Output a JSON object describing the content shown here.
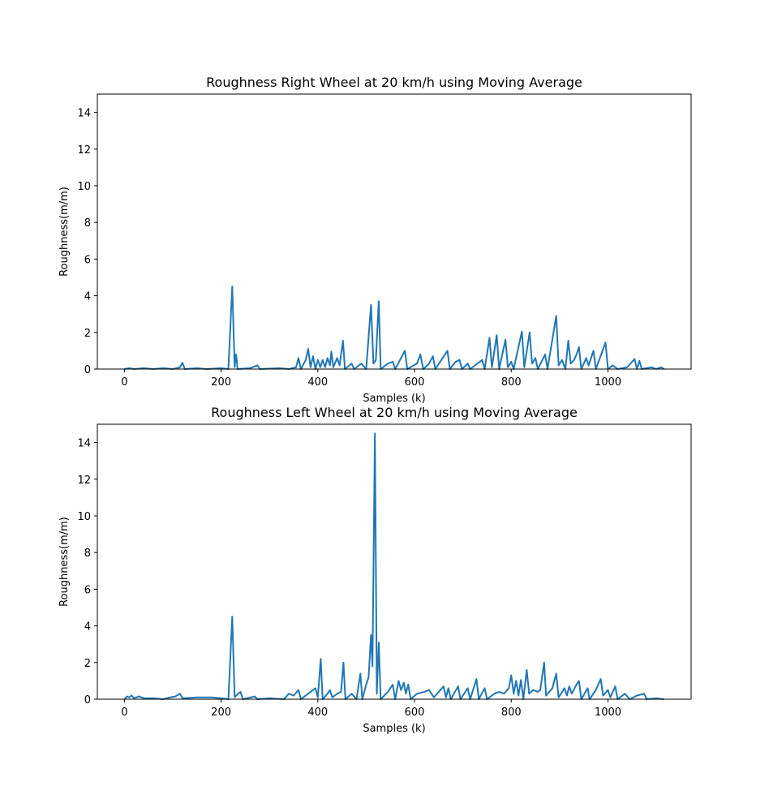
{
  "chart_data": [
    {
      "type": "line",
      "title": "Roughness Right Wheel at 20 km/h using Moving Average",
      "xlabel": "Samples (k)",
      "ylabel": "Roughness(m/m)",
      "color": "#1f77b4",
      "x": [
        0,
        10,
        20,
        40,
        60,
        80,
        100,
        115,
        120,
        125,
        150,
        170,
        200,
        215,
        223,
        228,
        231,
        234,
        260,
        275,
        280,
        320,
        340,
        355,
        360,
        365,
        375,
        380,
        385,
        390,
        395,
        400,
        405,
        410,
        415,
        420,
        425,
        428,
        432,
        440,
        445,
        452,
        456,
        470,
        475,
        490,
        500,
        510,
        515,
        520,
        526,
        530,
        545,
        555,
        560,
        580,
        585,
        605,
        612,
        618,
        630,
        638,
        643,
        668,
        673,
        685,
        693,
        698,
        710,
        715,
        740,
        745,
        755,
        760,
        770,
        775,
        788,
        793,
        800,
        805,
        822,
        827,
        838,
        843,
        850,
        855,
        870,
        875,
        893,
        898,
        905,
        912,
        918,
        923,
        930,
        935,
        940,
        945,
        955,
        960,
        970,
        975,
        995,
        1000,
        1010,
        1020,
        1040,
        1055,
        1060,
        1065,
        1070,
        1090,
        1100,
        1110,
        1116
      ],
      "values": [
        0,
        0.05,
        0,
        0.05,
        0,
        0.05,
        0,
        0.1,
        0.35,
        0,
        0.05,
        0,
        0.05,
        0,
        4.5,
        0.1,
        0.8,
        0,
        0.05,
        0.2,
        0,
        0.05,
        0,
        0.1,
        0.6,
        0,
        0.5,
        1.1,
        0.1,
        0.7,
        0,
        0.5,
        0.1,
        0.5,
        0.1,
        0.6,
        0.2,
        0.95,
        0.1,
        0.6,
        0.2,
        1.55,
        0,
        0.3,
        0,
        0.3,
        0,
        3.5,
        0.3,
        0.5,
        3.7,
        0,
        0.3,
        0.4,
        0,
        1.0,
        0,
        0.3,
        0.8,
        0,
        0.3,
        0.7,
        0,
        1.0,
        0,
        0.4,
        0.5,
        0,
        0.3,
        0,
        0.5,
        0,
        1.7,
        0.1,
        1.85,
        0,
        1.6,
        0.1,
        0.4,
        0,
        2.05,
        0.1,
        2.0,
        0.3,
        0.6,
        0,
        0.8,
        0,
        2.9,
        0.2,
        0.5,
        0,
        1.55,
        0.3,
        0.5,
        0.8,
        1.2,
        0,
        0.6,
        0.2,
        1.0,
        0,
        1.45,
        0,
        0.2,
        0,
        0.1,
        0.55,
        0,
        0.45,
        0,
        0.1,
        0,
        0.1,
        0
      ],
      "xlim": [
        -56,
        1172
      ],
      "ylim": [
        0,
        15
      ],
      "xticks": [
        0,
        200,
        400,
        600,
        800,
        1000
      ],
      "yticks": [
        0,
        2,
        4,
        6,
        8,
        10,
        12,
        14
      ]
    },
    {
      "type": "line",
      "title": "Roughness Left Wheel at 20 km/h using Moving Average",
      "xlabel": "Samples (k)",
      "ylabel": "Roughness(m/m)",
      "color": "#1f77b4",
      "x": [
        0,
        5,
        10,
        15,
        20,
        30,
        40,
        60,
        80,
        95,
        105,
        115,
        120,
        150,
        180,
        200,
        215,
        223,
        228,
        235,
        240,
        245,
        270,
        275,
        300,
        330,
        340,
        350,
        360,
        365,
        380,
        395,
        400,
        406,
        410,
        420,
        425,
        430,
        440,
        448,
        453,
        457,
        470,
        480,
        488,
        492,
        500,
        505,
        510,
        513,
        518,
        522,
        526,
        530,
        545,
        555,
        560,
        567,
        572,
        578,
        582,
        587,
        592,
        605,
        620,
        630,
        640,
        660,
        665,
        670,
        675,
        690,
        695,
        710,
        715,
        728,
        733,
        745,
        750,
        765,
        775,
        785,
        795,
        800,
        805,
        810,
        815,
        820,
        825,
        832,
        837,
        845,
        855,
        860,
        868,
        872,
        885,
        893,
        898,
        910,
        915,
        920,
        925,
        935,
        940,
        945,
        958,
        962,
        975,
        985,
        990,
        1000,
        1005,
        1015,
        1020,
        1035,
        1045,
        1060,
        1075,
        1080,
        1100,
        1116
      ],
      "values": [
        0,
        0.15,
        0.1,
        0.2,
        0.05,
        0.15,
        0.05,
        0.05,
        0,
        0.1,
        0.15,
        0.3,
        0.05,
        0.1,
        0.1,
        0.05,
        0,
        4.5,
        0.1,
        0.3,
        0.4,
        0,
        0.15,
        0,
        0.05,
        0,
        0.3,
        0.2,
        0.5,
        0,
        0.3,
        0.6,
        0.1,
        2.2,
        0,
        0.3,
        0.5,
        0.1,
        0.3,
        0.4,
        2.0,
        0,
        0.3,
        0,
        1.4,
        0,
        0.8,
        1.2,
        3.5,
        1.8,
        14.5,
        0.3,
        3.1,
        0,
        0.4,
        0.8,
        0,
        1.0,
        0.5,
        0.9,
        0.3,
        0.8,
        0,
        0.3,
        0.4,
        0.5,
        0.1,
        0.7,
        0.1,
        0.6,
        0,
        0.7,
        0,
        0.6,
        0,
        1.1,
        0,
        0.6,
        0,
        0.3,
        0.4,
        0.3,
        0.6,
        1.3,
        0.3,
        1.0,
        0.2,
        1.05,
        0,
        1.6,
        0.3,
        0.5,
        0.4,
        0.5,
        2.0,
        0.2,
        0.6,
        1.4,
        0.1,
        0.6,
        0.2,
        0.7,
        0.3,
        0.8,
        1.0,
        0,
        0.6,
        0,
        0.5,
        1.1,
        0.2,
        0.5,
        0.1,
        0.7,
        0,
        0.3,
        0,
        0.2,
        0.3,
        0,
        0.05,
        0
      ],
      "xlim": [
        -56,
        1172
      ],
      "ylim": [
        0,
        15
      ],
      "xticks": [
        0,
        200,
        400,
        600,
        800,
        1000
      ],
      "yticks": [
        0,
        2,
        4,
        6,
        8,
        10,
        12,
        14
      ]
    }
  ]
}
